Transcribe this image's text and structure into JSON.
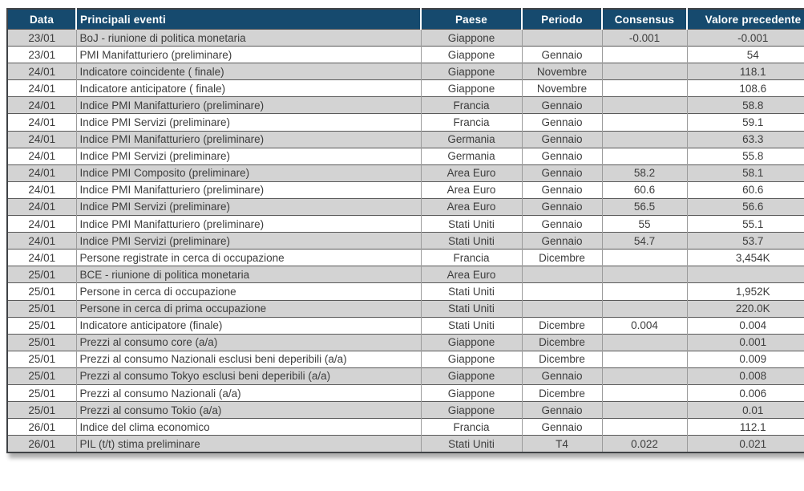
{
  "colors": {
    "header_bg": "#164a6e",
    "header_text": "#ffffff",
    "row_stripe": "#d3d3d3",
    "row_plain": "#ffffff",
    "body_text": "#3d3d3d"
  },
  "table": {
    "columns": [
      {
        "key": "data",
        "label": "Data"
      },
      {
        "key": "evento",
        "label": "Principali eventi"
      },
      {
        "key": "paese",
        "label": "Paese"
      },
      {
        "key": "periodo",
        "label": "Periodo"
      },
      {
        "key": "consensus",
        "label": "Consensus"
      },
      {
        "key": "valore",
        "label": "Valore precedente"
      }
    ],
    "rows": [
      [
        "23/01",
        "BoJ - riunione di politica monetaria",
        "Giappone",
        "",
        "-0.001",
        "-0.001"
      ],
      [
        "23/01",
        "PMI Manifatturiero (preliminare)",
        "Giappone",
        "Gennaio",
        "",
        "54"
      ],
      [
        "24/01",
        "Indicatore coincidente ( finale)",
        "Giappone",
        "Novembre",
        "",
        "118.1"
      ],
      [
        "24/01",
        "Indicatore anticipatore ( finale)",
        "Giappone",
        "Novembre",
        "",
        "108.6"
      ],
      [
        "24/01",
        "Indice PMI Manifatturiero (preliminare)",
        "Francia",
        "Gennaio",
        "",
        "58.8"
      ],
      [
        "24/01",
        "Indice PMI Servizi (preliminare)",
        "Francia",
        "Gennaio",
        "",
        "59.1"
      ],
      [
        "24/01",
        "Indice PMI Manifatturiero (preliminare)",
        "Germania",
        "Gennaio",
        "",
        "63.3"
      ],
      [
        "24/01",
        "Indice PMI Servizi (preliminare)",
        "Germania",
        "Gennaio",
        "",
        "55.8"
      ],
      [
        "24/01",
        "Indice PMI Composito (preliminare)",
        "Area Euro",
        "Gennaio",
        "58.2",
        "58.1"
      ],
      [
        "24/01",
        "Indice PMI Manifatturiero (preliminare)",
        "Area Euro",
        "Gennaio",
        "60.6",
        "60.6"
      ],
      [
        "24/01",
        "Indice PMI Servizi (preliminare)",
        "Area Euro",
        "Gennaio",
        "56.5",
        "56.6"
      ],
      [
        "24/01",
        "Indice PMI Manifatturiero (preliminare)",
        "Stati Uniti",
        "Gennaio",
        "55",
        "55.1"
      ],
      [
        "24/01",
        "Indice PMI Servizi (preliminare)",
        "Stati Uniti",
        "Gennaio",
        "54.7",
        "53.7"
      ],
      [
        "24/01",
        "Persone registrate in cerca di occupazione",
        "Francia",
        "Dicembre",
        "",
        "3,454K"
      ],
      [
        "25/01",
        "BCE - riunione di politica monetaria",
        "Area Euro",
        "",
        "",
        ""
      ],
      [
        "25/01",
        "Persone in cerca di occupazione",
        "Stati Uniti",
        "",
        "",
        "1,952K"
      ],
      [
        "25/01",
        "Persone in cerca di prima occupazione",
        "Stati Uniti",
        "",
        "",
        "220.0K"
      ],
      [
        "25/01",
        "Indicatore anticipatore (finale)",
        "Stati Uniti",
        "Dicembre",
        "0.004",
        "0.004"
      ],
      [
        "25/01",
        "Prezzi al consumo core (a/a)",
        "Giappone",
        "Dicembre",
        "",
        "0.001"
      ],
      [
        "25/01",
        "Prezzi al consumo Nazionali esclusi beni deperibili (a/a)",
        "Giappone",
        "Dicembre",
        "",
        "0.009"
      ],
      [
        "25/01",
        "Prezzi al consumo Tokyo esclusi beni deperibili (a/a)",
        "Giappone",
        "Gennaio",
        "",
        "0.008"
      ],
      [
        "25/01",
        "Prezzi al consumo Nazionali (a/a)",
        "Giappone",
        "Dicembre",
        "",
        "0.006"
      ],
      [
        "25/01",
        "Prezzi al consumo Tokio (a/a)",
        "Giappone",
        "Gennaio",
        "",
        "0.01"
      ],
      [
        "26/01",
        "Indice del clima economico",
        "Francia",
        "Gennaio",
        "",
        "112.1"
      ],
      [
        "26/01",
        "PIL (t/t) stima preliminare",
        "Stati Uniti",
        "T4",
        "0.022",
        "0.021"
      ]
    ]
  }
}
